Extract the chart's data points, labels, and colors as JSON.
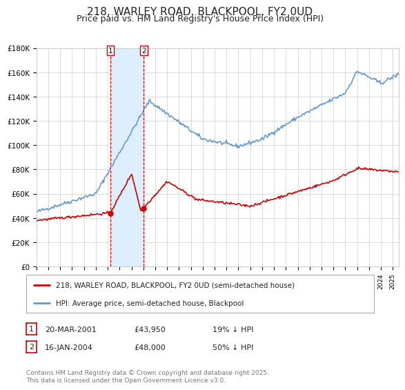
{
  "title": "218, WARLEY ROAD, BLACKPOOL, FY2 0UD",
  "subtitle": "Price paid vs. HM Land Registry's House Price Index (HPI)",
  "title_fontsize": 11,
  "subtitle_fontsize": 9,
  "background_color": "#ffffff",
  "plot_bg_color": "#ffffff",
  "grid_color": "#cccccc",
  "red_line_color": "#cc0000",
  "blue_line_color": "#6699cc",
  "shade_color": "#ddeeff",
  "vline_color": "#cc0000",
  "label1_date": "20-MAR-2001",
  "label1_price": "£43,950",
  "label1_hpi": "19% ↓ HPI",
  "label2_date": "16-JAN-2004",
  "label2_price": "£48,000",
  "label2_hpi": "50% ↓ HPI",
  "footer": "Contains HM Land Registry data © Crown copyright and database right 2025.\nThis data is licensed under the Open Government Licence v3.0.",
  "legend_red": "218, WARLEY ROAD, BLACKPOOL, FY2 0UD (semi-detached house)",
  "legend_blue": "HPI: Average price, semi-detached house, Blackpool",
  "ylim": [
    0,
    180000
  ],
  "yticks": [
    0,
    20000,
    40000,
    60000,
    80000,
    100000,
    120000,
    140000,
    160000,
    180000
  ],
  "sale1_year": 2001.22,
  "sale2_year": 2004.04,
  "sale1_value": 43950,
  "sale2_value": 48000
}
